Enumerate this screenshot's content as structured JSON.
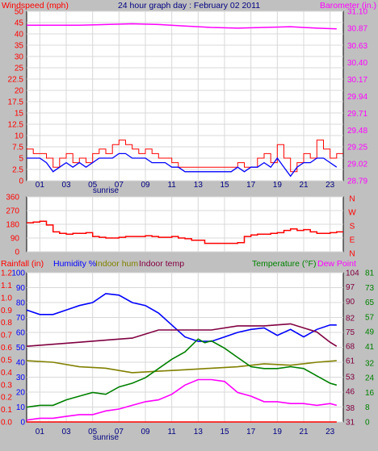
{
  "colors": {
    "wind": "#ff0000",
    "wind_avg": "#0000ff",
    "baro": "#ff00ff",
    "dir": "#ff0000",
    "hum": "#0000ff",
    "in_hum": "#808000",
    "in_temp": "#800040",
    "temp": "#008000",
    "dew": "#ff00ff",
    "rain": "#ff0000",
    "title": "#000080",
    "bg": "#c0c0c0",
    "plot_bg": "#ffffff",
    "grid": "#d8d8d8"
  },
  "chart_data": [
    {
      "type": "line",
      "title": "24 hour graph day : February 02 2011",
      "xticks": [
        "01",
        "03",
        "05",
        "07",
        "09",
        "11",
        "13",
        "15",
        "17",
        "19",
        "21",
        "23"
      ],
      "sunrise_label": "sunrise",
      "sunrise_hour": 6.0,
      "left_axis": {
        "label": "Windspeed (mph)",
        "ylim": [
          0,
          50
        ],
        "ticks": [
          "0",
          "2.5",
          "5",
          "7.5",
          "10",
          "12.5",
          "15",
          "17.5",
          "20",
          "22.5",
          "25",
          "30",
          "35",
          "40",
          "45",
          "50"
        ]
      },
      "right_axis": {
        "label": "Barometer (in.)",
        "ylim": [
          28.79,
          31.1
        ],
        "ticks": [
          "28.79",
          "29.02",
          "29.25",
          "29.48",
          "29.71",
          "29.94",
          "30.17",
          "30.40",
          "30.63",
          "30.87",
          "31.10"
        ]
      },
      "series": [
        {
          "name": "Windspeed (mph)",
          "axis": "left",
          "x": [
            0,
            0.5,
            1,
            1.5,
            2,
            2.5,
            3,
            3.5,
            4,
            4.5,
            5,
            5.5,
            6,
            6.5,
            7,
            7.5,
            8,
            8.5,
            9,
            9.5,
            10,
            10.5,
            11,
            11.5,
            12,
            12.5,
            13,
            13.5,
            14,
            14.5,
            15,
            15.5,
            16,
            16.5,
            17,
            17.5,
            18,
            18.5,
            19,
            19.5,
            20,
            20.5,
            21,
            21.5,
            22,
            22.5,
            23,
            23.5
          ],
          "y": [
            7,
            6,
            6,
            5,
            3,
            5,
            6,
            4,
            5,
            4,
            6,
            7,
            6,
            8,
            9,
            8,
            7,
            6,
            7,
            6,
            5,
            5,
            4,
            3,
            3,
            3,
            3,
            3,
            3,
            3,
            3,
            3,
            4,
            3,
            3,
            5,
            6,
            4,
            8,
            5,
            2,
            4,
            6,
            5,
            9,
            7,
            5,
            6
          ]
        },
        {
          "name": "Average windspeed",
          "axis": "left",
          "x": [
            0,
            0.5,
            1,
            1.5,
            2,
            2.5,
            3,
            3.5,
            4,
            4.5,
            5,
            5.5,
            6,
            6.5,
            7,
            7.5,
            8,
            8.5,
            9,
            9.5,
            10,
            10.5,
            11,
            11.5,
            12,
            12.5,
            13,
            13.5,
            14,
            14.5,
            15,
            15.5,
            16,
            16.5,
            17,
            17.5,
            18,
            18.5,
            19,
            19.5,
            20,
            20.5,
            21,
            21.5,
            22,
            22.5,
            23,
            23.5
          ],
          "y": [
            5,
            5,
            5,
            4,
            2,
            3,
            4,
            3,
            4,
            3,
            4,
            5,
            5,
            5,
            6,
            6,
            5,
            5,
            5,
            4,
            4,
            4,
            3,
            3,
            2,
            2,
            2,
            2,
            2,
            2,
            2,
            2,
            3,
            2,
            3,
            3,
            4,
            3,
            5,
            3,
            1,
            3,
            4,
            4,
            5,
            5,
            4,
            3
          ]
        },
        {
          "name": "Barometer (in.)",
          "axis": "right",
          "x": [
            0,
            2,
            4,
            6,
            8,
            10,
            12,
            14,
            16,
            18,
            20,
            22,
            23.5
          ],
          "y": [
            30.91,
            30.91,
            30.91,
            30.92,
            30.93,
            30.92,
            30.9,
            30.88,
            30.87,
            30.88,
            30.89,
            30.87,
            30.86
          ]
        }
      ]
    },
    {
      "type": "line",
      "left_axis": {
        "ylim": [
          0,
          360
        ],
        "ticks": [
          "0",
          "90",
          "180",
          "270",
          "360"
        ]
      },
      "right_axis": {
        "ticks": [
          "N",
          "W",
          "S",
          "E",
          "N"
        ]
      },
      "series": [
        {
          "name": "Wind direction",
          "x": [
            0,
            0.5,
            1,
            1.5,
            2,
            2.5,
            3,
            3.5,
            4,
            4.5,
            5,
            5.5,
            6,
            6.5,
            7,
            7.5,
            8,
            8.5,
            9,
            9.5,
            10,
            10.5,
            11,
            11.5,
            12,
            12.5,
            13,
            13.5,
            14,
            14.5,
            15,
            15.5,
            16,
            16.5,
            17,
            17.5,
            18,
            18.5,
            19,
            19.5,
            20,
            20.5,
            21,
            21.5,
            22,
            22.5,
            23,
            23.5
          ],
          "y": [
            190,
            195,
            200,
            175,
            130,
            120,
            115,
            120,
            120,
            125,
            100,
            95,
            90,
            90,
            95,
            100,
            100,
            100,
            105,
            100,
            95,
            95,
            100,
            90,
            85,
            75,
            75,
            55,
            55,
            55,
            55,
            55,
            60,
            100,
            110,
            115,
            115,
            120,
            125,
            140,
            150,
            140,
            145,
            130,
            120,
            120,
            125,
            130
          ]
        }
      ]
    },
    {
      "type": "line",
      "xticks": [
        "01",
        "03",
        "05",
        "07",
        "09",
        "11",
        "13",
        "15",
        "17",
        "19",
        "21",
        "23"
      ],
      "sunrise_label": "sunrise",
      "sunrise_hour": 6.0,
      "axes": {
        "rain": {
          "label": "Rainfall (in)",
          "ylim": [
            0,
            1.2
          ],
          "ticks": [
            "0.0",
            "0.1",
            "0.2",
            "0.3",
            "0.4",
            "0.5",
            "0.6",
            "0.7",
            "0.8",
            "0.9",
            "1.0",
            "1.1",
            "1.2"
          ]
        },
        "humidity": {
          "label": "Humidity %",
          "ylim": [
            0,
            100
          ],
          "ticks": [
            "0",
            "10",
            "20",
            "30",
            "40",
            "50",
            "60",
            "70",
            "80",
            "90",
            "100"
          ]
        },
        "indoor_hum_label": "Indoor hum",
        "indoor_temp_label": "Indoor temp",
        "indoor_temp": {
          "ylim": [
            31,
            104
          ],
          "ticks": [
            "31",
            "38",
            "46",
            "53",
            "61",
            "68",
            "75",
            "82",
            "90",
            "97",
            "104"
          ]
        },
        "temperature": {
          "label": "Temperature (°F)",
          "ylim": [
            0,
            81
          ],
          "ticks": [
            "0",
            "8",
            "16",
            "24",
            "32",
            "41",
            "49",
            "57",
            "65",
            "73",
            "81"
          ]
        },
        "dew_label": "Dew Point"
      },
      "series": [
        {
          "name": "Humidity %",
          "axis": "humidity",
          "x": [
            0,
            1,
            2,
            3,
            4,
            5,
            6,
            7,
            8,
            9,
            10,
            11,
            12,
            13,
            14,
            15,
            16,
            17,
            18,
            19,
            20,
            21,
            22,
            23,
            23.5
          ],
          "y": [
            75,
            72,
            72,
            75,
            78,
            80,
            86,
            85,
            80,
            78,
            73,
            65,
            57,
            54,
            54,
            57,
            60,
            62,
            63,
            58,
            62,
            57,
            62,
            65,
            65
          ]
        },
        {
          "name": "Indoor temp",
          "axis": "indoor_temp",
          "x": [
            0,
            2,
            4,
            6,
            8,
            10,
            12,
            14,
            16,
            18,
            20,
            22,
            23,
            23.5
          ],
          "y": [
            68,
            69,
            70,
            71,
            72,
            76,
            76,
            76,
            78,
            78,
            79,
            75,
            70,
            68
          ]
        },
        {
          "name": "Indoor hum",
          "axis": "humidity",
          "x": [
            0,
            2,
            4,
            6,
            8,
            10,
            12,
            14,
            16,
            18,
            20,
            22,
            23.5
          ],
          "y": [
            41,
            40,
            37,
            36,
            33,
            34,
            35,
            36,
            37,
            39,
            38,
            40,
            41
          ]
        },
        {
          "name": "Temperature (°F)",
          "axis": "temperature",
          "x": [
            0,
            1,
            2,
            3,
            4,
            5,
            6,
            7,
            8,
            9,
            10,
            11,
            12,
            13,
            13.5,
            14,
            15,
            16,
            17,
            18,
            19,
            20,
            21,
            22,
            23,
            23.5
          ],
          "y": [
            8,
            9,
            9,
            12,
            14,
            16,
            15,
            19,
            21,
            24,
            29,
            34,
            38,
            45,
            43,
            44,
            40,
            35,
            30,
            29,
            29,
            30,
            29,
            25,
            21,
            20
          ]
        },
        {
          "name": "Dew Point",
          "axis": "temperature",
          "x": [
            0,
            1,
            2,
            3,
            4,
            5,
            6,
            7,
            8,
            9,
            10,
            11,
            12,
            13,
            14,
            15,
            16,
            17,
            18,
            19,
            20,
            21,
            22,
            23,
            23.5
          ],
          "y": [
            1,
            2,
            2,
            3,
            4,
            4,
            6,
            7,
            9,
            11,
            12,
            15,
            20,
            23,
            23,
            22,
            16,
            14,
            11,
            11,
            10,
            10,
            9,
            10,
            9
          ]
        },
        {
          "name": "Rainfall (in)",
          "axis": "rain",
          "x": [
            0,
            23.5
          ],
          "y": [
            0,
            0
          ]
        }
      ]
    }
  ]
}
